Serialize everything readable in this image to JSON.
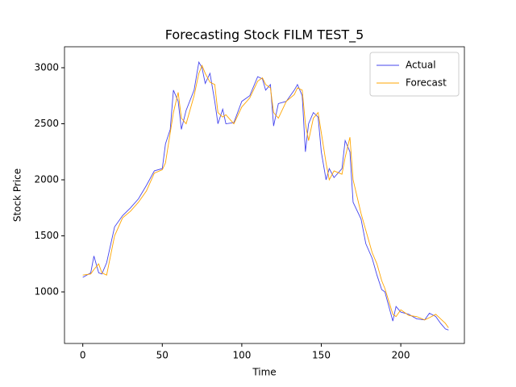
{
  "chart_data": {
    "type": "line",
    "title": "Forecasting Stock FILM TEST_5",
    "xlabel": "Time",
    "ylabel": "Stock Price",
    "x": [
      0,
      5,
      7,
      10,
      12,
      15,
      20,
      25,
      30,
      35,
      40,
      45,
      50,
      52,
      55,
      57,
      60,
      62,
      65,
      70,
      73,
      75,
      77,
      80,
      83,
      85,
      88,
      90,
      95,
      100,
      105,
      110,
      113,
      115,
      118,
      120,
      123,
      128,
      133,
      135,
      138,
      140,
      142,
      145,
      148,
      150,
      153,
      155,
      158,
      163,
      165,
      168,
      170,
      175,
      178,
      182,
      185,
      188,
      190,
      195,
      197,
      200,
      205,
      210,
      215,
      218,
      222,
      225,
      228,
      230
    ],
    "series": [
      {
        "name": "Actual",
        "color": "#4444ee",
        "values": [
          1130,
          1170,
          1320,
          1170,
          1160,
          1260,
          1580,
          1680,
          1750,
          1830,
          1950,
          2080,
          2100,
          2320,
          2450,
          2800,
          2700,
          2450,
          2620,
          2800,
          3050,
          3000,
          2860,
          2950,
          2700,
          2500,
          2630,
          2500,
          2510,
          2700,
          2750,
          2920,
          2900,
          2800,
          2850,
          2480,
          2680,
          2700,
          2800,
          2850,
          2750,
          2250,
          2500,
          2600,
          2560,
          2250,
          2000,
          2100,
          2020,
          2100,
          2350,
          2250,
          1800,
          1650,
          1430,
          1300,
          1150,
          1020,
          1000,
          740,
          870,
          820,
          800,
          760,
          750,
          810,
          780,
          720,
          670,
          660
        ]
      },
      {
        "name": "Forecast",
        "color": "#ffa500",
        "values": [
          1150,
          1160,
          1200,
          1250,
          1170,
          1150,
          1500,
          1660,
          1720,
          1800,
          1900,
          2060,
          2090,
          2150,
          2420,
          2600,
          2780,
          2550,
          2500,
          2750,
          2950,
          3020,
          2950,
          2870,
          2850,
          2600,
          2560,
          2580,
          2500,
          2650,
          2730,
          2880,
          2910,
          2850,
          2820,
          2600,
          2550,
          2700,
          2760,
          2820,
          2800,
          2500,
          2350,
          2550,
          2600,
          2420,
          2150,
          2000,
          2080,
          2050,
          2200,
          2380,
          2000,
          1700,
          1550,
          1350,
          1250,
          1100,
          1030,
          800,
          780,
          840,
          790,
          780,
          750,
          770,
          800,
          760,
          720,
          680
        ]
      }
    ],
    "xlim": [
      -11.5,
      240
    ],
    "ylim": [
      540,
      3187
    ],
    "xticks": [
      0,
      50,
      100,
      150,
      200
    ],
    "yticks": [
      1000,
      1500,
      2000,
      2500,
      3000
    ],
    "legend": "upper right"
  }
}
